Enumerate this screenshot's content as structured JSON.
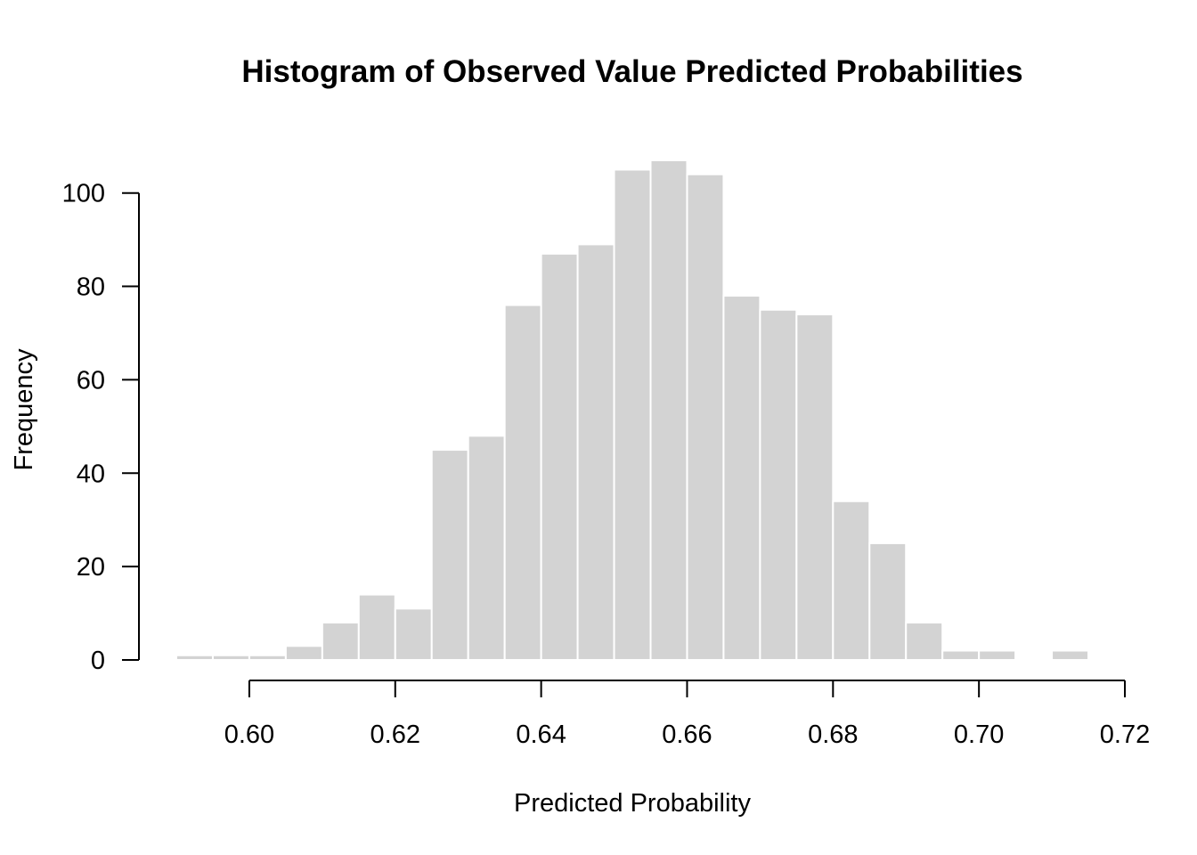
{
  "chart_data": {
    "type": "bar",
    "title": "Histogram of Observed Value Predicted Probabilities",
    "xlabel": "Predicted Probability",
    "ylabel": "Frequency",
    "bin_width": 0.005,
    "bins": [
      {
        "start": 0.59,
        "end": 0.595,
        "value": 1
      },
      {
        "start": 0.595,
        "end": 0.6,
        "value": 1
      },
      {
        "start": 0.6,
        "end": 0.605,
        "value": 1
      },
      {
        "start": 0.605,
        "end": 0.61,
        "value": 3
      },
      {
        "start": 0.61,
        "end": 0.615,
        "value": 8
      },
      {
        "start": 0.615,
        "end": 0.62,
        "value": 14
      },
      {
        "start": 0.62,
        "end": 0.625,
        "value": 11
      },
      {
        "start": 0.625,
        "end": 0.63,
        "value": 45
      },
      {
        "start": 0.63,
        "end": 0.635,
        "value": 48
      },
      {
        "start": 0.635,
        "end": 0.64,
        "value": 76
      },
      {
        "start": 0.64,
        "end": 0.645,
        "value": 87
      },
      {
        "start": 0.645,
        "end": 0.65,
        "value": 89
      },
      {
        "start": 0.65,
        "end": 0.655,
        "value": 105
      },
      {
        "start": 0.655,
        "end": 0.66,
        "value": 107
      },
      {
        "start": 0.66,
        "end": 0.665,
        "value": 104
      },
      {
        "start": 0.665,
        "end": 0.67,
        "value": 78
      },
      {
        "start": 0.67,
        "end": 0.675,
        "value": 75
      },
      {
        "start": 0.675,
        "end": 0.68,
        "value": 74
      },
      {
        "start": 0.68,
        "end": 0.685,
        "value": 34
      },
      {
        "start": 0.685,
        "end": 0.69,
        "value": 25
      },
      {
        "start": 0.69,
        "end": 0.695,
        "value": 8
      },
      {
        "start": 0.695,
        "end": 0.7,
        "value": 2
      },
      {
        "start": 0.7,
        "end": 0.705,
        "value": 2
      },
      {
        "start": 0.705,
        "end": 0.71,
        "value": 0
      },
      {
        "start": 0.71,
        "end": 0.715,
        "value": 2
      }
    ],
    "xlim": [
      0.59,
      0.72
    ],
    "ylim": [
      0,
      107
    ],
    "x_ticks": [
      0.6,
      0.62,
      0.64,
      0.66,
      0.68,
      0.7,
      0.72
    ],
    "x_tick_labels": [
      "0.60",
      "0.62",
      "0.64",
      "0.66",
      "0.68",
      "0.70",
      "0.72"
    ],
    "y_ticks": [
      0,
      20,
      40,
      60,
      80,
      100
    ],
    "y_tick_labels": [
      "0",
      "20",
      "40",
      "60",
      "80",
      "100"
    ],
    "bar_color": "#d3d3d3",
    "bar_border_color": "#ffffff",
    "grid": false,
    "legend": "none"
  }
}
